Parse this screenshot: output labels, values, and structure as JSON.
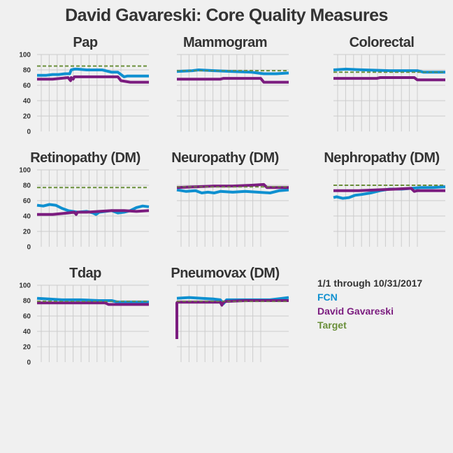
{
  "title": "David Gavareski: Core Quality Measures",
  "legend": {
    "date_range": "1/1 through 10/31/2017",
    "items": [
      {
        "label": "FCN",
        "color": "#0f90d0"
      },
      {
        "label": "David Gavareski",
        "color": "#7b1c7f"
      },
      {
        "label": "Target",
        "color": "#6a8f3a"
      }
    ]
  },
  "colors": {
    "fcn": "#0f90d0",
    "provider": "#7b1c7f",
    "target": "#6a8f3a",
    "grid": "#cccccc",
    "text": "#333333"
  },
  "chart_data": [
    {
      "type": "line",
      "title": "Pap",
      "ylim": [
        0,
        100
      ],
      "yticks": [
        0,
        20,
        40,
        60,
        80,
        100
      ],
      "show_ytick_labels": true,
      "target": 85,
      "series": [
        {
          "name": "FCN",
          "x": [
            0,
            3,
            5,
            7,
            9,
            10.5,
            11,
            12,
            13,
            16,
            21,
            24,
            26,
            28,
            29,
            31,
            33,
            36
          ],
          "values": [
            73,
            73,
            74,
            74,
            75,
            75,
            80,
            81,
            81,
            80,
            80,
            77,
            77,
            71,
            72,
            72,
            72,
            72
          ]
        },
        {
          "name": "David Gavareski",
          "x": [
            0,
            5,
            10,
            10.8,
            11,
            11.6,
            12,
            20,
            26,
            27,
            30,
            36
          ],
          "values": [
            68,
            68,
            70,
            66,
            70,
            68,
            71,
            71,
            71,
            66,
            64,
            64
          ]
        }
      ]
    },
    {
      "type": "line",
      "title": "Mammogram",
      "ylim": [
        0,
        100
      ],
      "yticks": [
        0,
        20,
        40,
        60,
        80,
        100
      ],
      "show_ytick_labels": false,
      "target": 79,
      "series": [
        {
          "name": "FCN",
          "x": [
            0,
            5,
            7,
            12,
            18,
            24,
            28,
            32,
            36
          ],
          "values": [
            78,
            79,
            80,
            79,
            78,
            77,
            75,
            75,
            76
          ]
        },
        {
          "name": "David Gavareski",
          "x": [
            0,
            14,
            15,
            27,
            28,
            36
          ],
          "values": [
            68,
            68,
            69,
            69,
            64,
            64
          ]
        }
      ]
    },
    {
      "type": "line",
      "title": "Colorectal",
      "ylim": [
        0,
        100
      ],
      "yticks": [
        0,
        20,
        40,
        60,
        80,
        100
      ],
      "show_ytick_labels": false,
      "target": 77,
      "series": [
        {
          "name": "FCN",
          "x": [
            0,
            4,
            10,
            18,
            24,
            27,
            29,
            32,
            36
          ],
          "values": [
            80,
            81,
            80,
            79,
            79,
            79,
            77,
            77,
            77
          ]
        },
        {
          "name": "David Gavareski",
          "x": [
            0,
            14,
            15,
            26,
            27,
            36
          ],
          "values": [
            69,
            69,
            70,
            70,
            67,
            67
          ]
        }
      ]
    },
    {
      "type": "line",
      "title": "Retinopathy (DM)",
      "ylim": [
        0,
        100
      ],
      "yticks": [
        0,
        20,
        40,
        60,
        80,
        100
      ],
      "show_ytick_labels": true,
      "target": 77,
      "series": [
        {
          "name": "FCN",
          "x": [
            0,
            2,
            4,
            6,
            8,
            10,
            13,
            16,
            18,
            19,
            20,
            22,
            24,
            26,
            28,
            30,
            32,
            34,
            36
          ],
          "values": [
            54,
            53,
            55,
            54,
            50,
            47,
            45,
            46,
            44,
            42,
            45,
            46,
            47,
            44,
            45,
            47,
            51,
            53,
            52
          ]
        },
        {
          "name": "David Gavareski",
          "x": [
            0,
            5,
            10,
            12,
            12.6,
            13,
            16,
            20,
            24,
            28,
            32,
            36
          ],
          "values": [
            42,
            42,
            44,
            45,
            42,
            45,
            45,
            46,
            47,
            47,
            46,
            47
          ]
        }
      ]
    },
    {
      "type": "line",
      "title": "Neuropathy (DM)",
      "ylim": [
        0,
        100
      ],
      "yticks": [
        0,
        20,
        40,
        60,
        80,
        100
      ],
      "show_ytick_labels": false,
      "target": 78,
      "series": [
        {
          "name": "FCN",
          "x": [
            0,
            3,
            6,
            8,
            10,
            12,
            14,
            18,
            22,
            26,
            30,
            33,
            36
          ],
          "values": [
            74,
            72,
            73,
            70,
            71,
            70,
            72,
            71,
            72,
            71,
            70,
            73,
            74
          ]
        },
        {
          "name": "David Gavareski",
          "x": [
            0,
            6,
            12,
            18,
            24,
            28,
            29,
            32,
            36
          ],
          "values": [
            77,
            78,
            79,
            79,
            80,
            81,
            77,
            77,
            77
          ]
        }
      ]
    },
    {
      "type": "line",
      "title": "Nephropathy (DM)",
      "ylim": [
        0,
        100
      ],
      "yticks": [
        0,
        20,
        40,
        60,
        80,
        100
      ],
      "show_ytick_labels": false,
      "target": 80,
      "series": [
        {
          "name": "FCN",
          "x": [
            0,
            1,
            3,
            5,
            7,
            9,
            12,
            15,
            18,
            22,
            25,
            28,
            32,
            36
          ],
          "values": [
            64,
            65,
            63,
            64,
            67,
            68,
            70,
            73,
            75,
            75,
            76,
            77,
            77,
            78
          ]
        },
        {
          "name": "David Gavareski",
          "x": [
            0,
            8,
            14,
            20,
            25,
            26,
            27,
            36
          ],
          "values": [
            73,
            73,
            74,
            75,
            76,
            72,
            73,
            73
          ]
        }
      ]
    },
    {
      "type": "line",
      "title": "Tdap",
      "ylim": [
        0,
        100
      ],
      "yticks": [
        0,
        20,
        40,
        60,
        80,
        100
      ],
      "show_ytick_labels": true,
      "target": 79,
      "series": [
        {
          "name": "FCN",
          "x": [
            0,
            4,
            8,
            14,
            20,
            24,
            26,
            30,
            34,
            36
          ],
          "values": [
            83,
            82,
            81,
            81,
            80,
            80,
            78,
            78,
            78,
            78
          ]
        },
        {
          "name": "David Gavareski",
          "x": [
            0,
            22,
            23,
            36
          ],
          "values": [
            77,
            77,
            75,
            75
          ]
        }
      ]
    },
    {
      "type": "line",
      "title": "Pneumovax (DM)",
      "ylim": [
        0,
        100
      ],
      "yticks": [
        0,
        20,
        40,
        60,
        80,
        100
      ],
      "show_ytick_labels": false,
      "target": 79,
      "series": [
        {
          "name": "FCN",
          "x": [
            0,
            4,
            8,
            12,
            14,
            15,
            16,
            18,
            22,
            26,
            30,
            34,
            36
          ],
          "values": [
            83,
            84,
            83,
            82,
            81,
            76,
            81,
            81,
            81,
            81,
            81,
            83,
            84
          ]
        },
        {
          "name": "David Gavareski",
          "x": [
            0,
            0.01,
            0.2,
            8,
            14,
            14.5,
            15,
            16,
            22,
            28,
            36
          ],
          "values": [
            30,
            77,
            78,
            78,
            78,
            74,
            78,
            79,
            80,
            80,
            80
          ]
        }
      ]
    }
  ]
}
